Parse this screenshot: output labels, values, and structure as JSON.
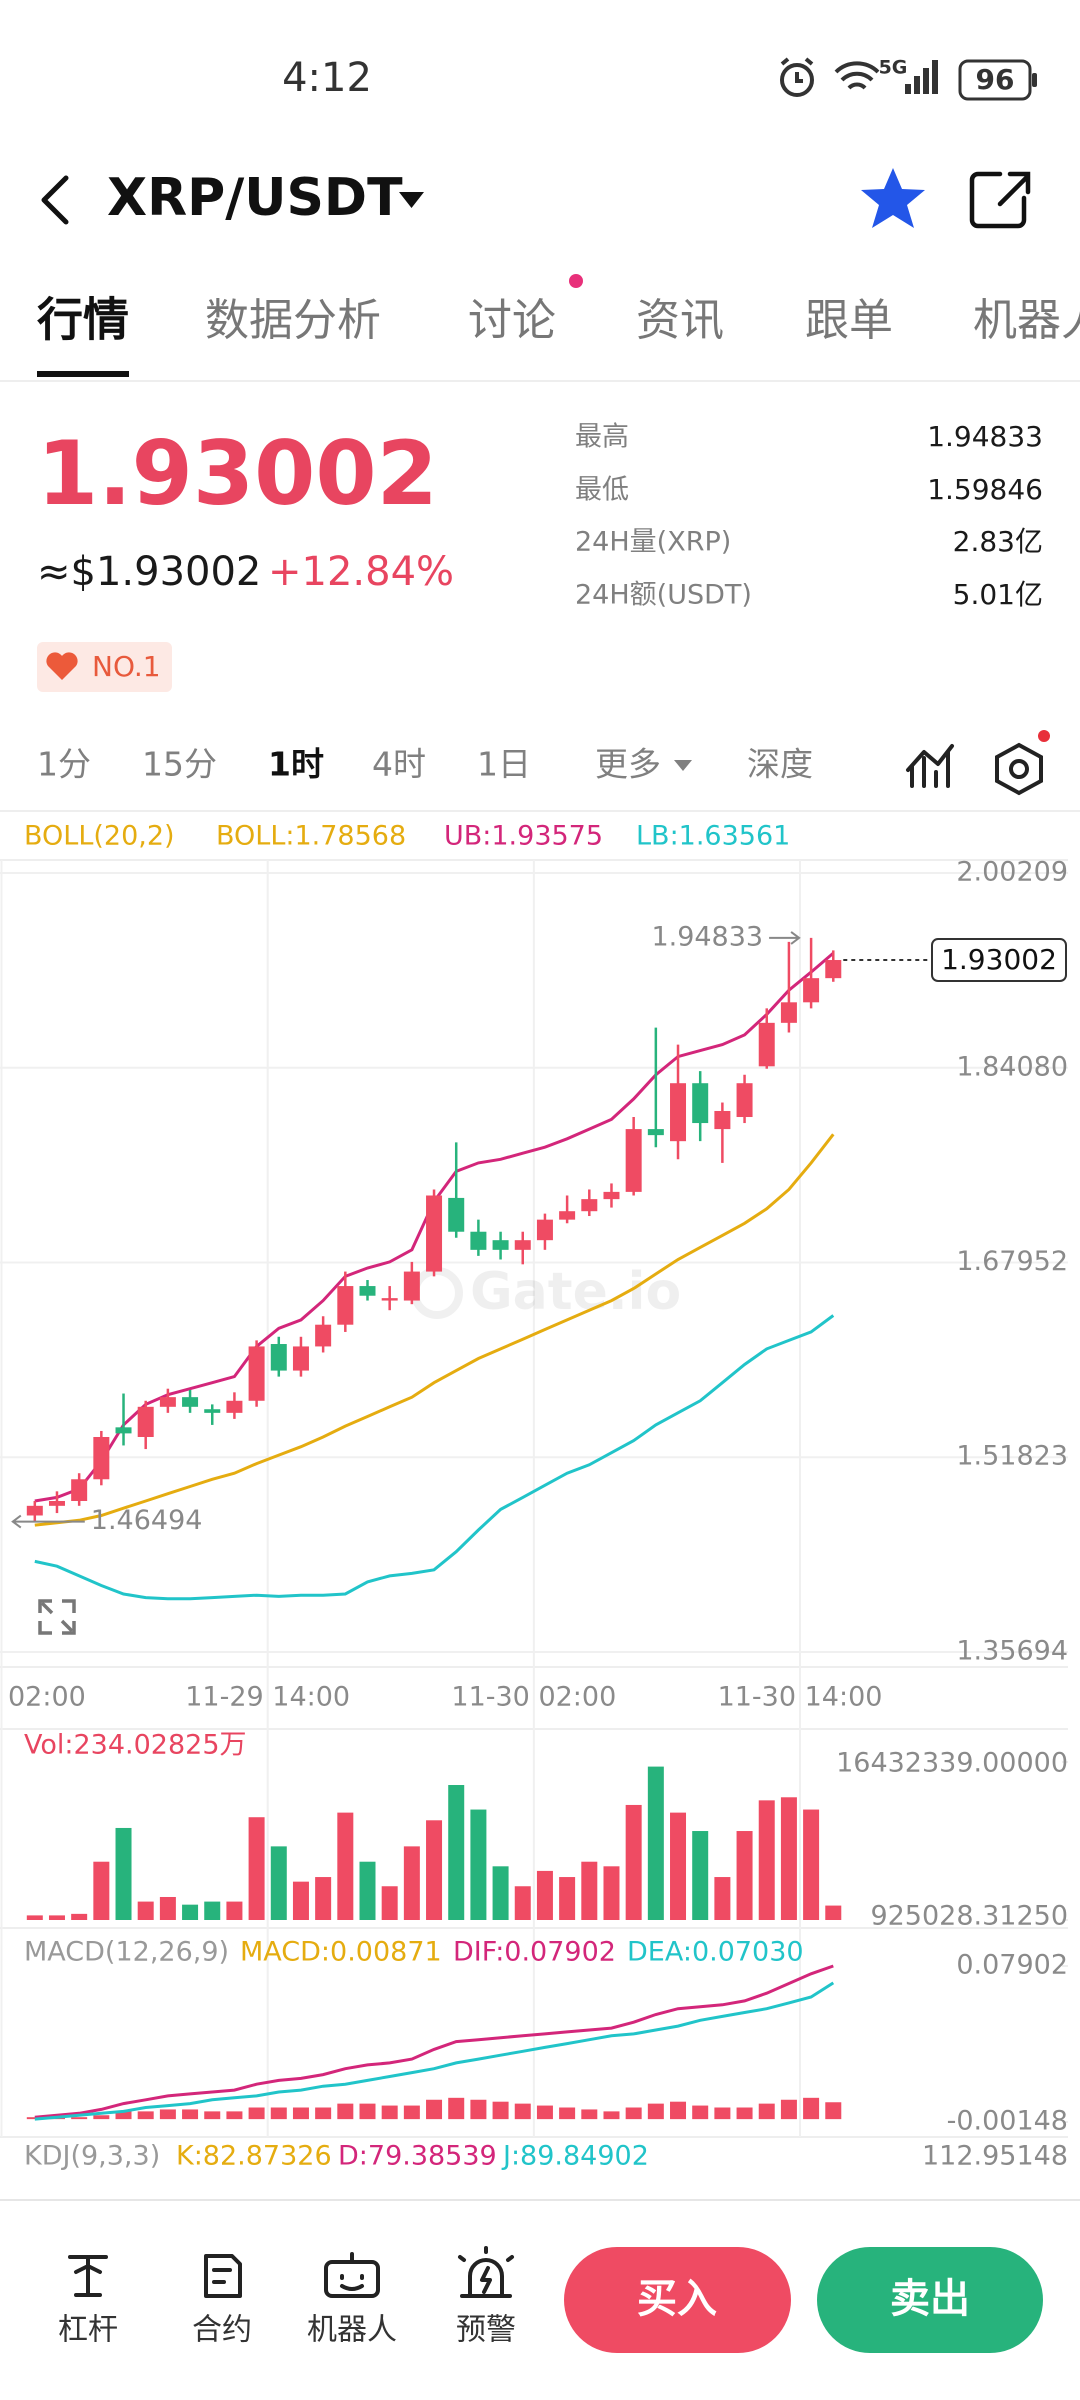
{
  "status_bar": {
    "time": "4:12",
    "network": "5G",
    "battery": "96"
  },
  "header": {
    "pair": "XRP/USDT"
  },
  "tabs": [
    "行情",
    "数据分析",
    "讨论",
    "资讯",
    "跟单",
    "机器人"
  ],
  "price": {
    "last": "1.93002",
    "usd": "≈$1.93002",
    "change": "+12.84%",
    "rank": "NO.1"
  },
  "stats": [
    {
      "label": "最高",
      "value": "1.94833"
    },
    {
      "label": "最低",
      "value": "1.59846"
    },
    {
      "label": "24H量(XRP)",
      "value": "2.83亿"
    },
    {
      "label": "24H额(USDT)",
      "value": "5.01亿"
    }
  ],
  "intervals": [
    "1分",
    "15分",
    "1时",
    "4时",
    "1日",
    "更多",
    "深度"
  ],
  "nav": [
    "杠杆",
    "合约",
    "机器人",
    "预警"
  ],
  "actions": {
    "buy": "买入",
    "sell": "卖出"
  },
  "chart_data": [
    {
      "type": "candlestick",
      "indicator": "BOLL(20,2)",
      "indicator_color": "#e5ac10",
      "watermark": "Gate.io",
      "up_color": "#ef4b63",
      "down_color": "#27b37c",
      "open": [
        1.47,
        1.478,
        1.482,
        1.5,
        1.543,
        1.535,
        1.56,
        1.568,
        1.558,
        1.555,
        1.565,
        1.612,
        1.59,
        1.61,
        1.628,
        1.66,
        1.648,
        1.648,
        1.672,
        1.733,
        1.705,
        1.698,
        1.69,
        1.698,
        1.715,
        1.722,
        1.732,
        1.738,
        1.79,
        1.78,
        1.828,
        1.79,
        1.8,
        1.842,
        1.878,
        1.895,
        1.915
      ],
      "close": [
        1.478,
        1.482,
        1.5,
        1.535,
        1.538,
        1.56,
        1.568,
        1.56,
        1.555,
        1.565,
        1.61,
        1.59,
        1.61,
        1.628,
        1.66,
        1.652,
        1.65,
        1.672,
        1.735,
        1.705,
        1.69,
        1.69,
        1.698,
        1.715,
        1.722,
        1.732,
        1.738,
        1.79,
        1.785,
        1.828,
        1.795,
        1.805,
        1.828,
        1.878,
        1.895,
        1.915,
        1.93002
      ],
      "high": [
        1.482,
        1.49,
        1.505,
        1.54,
        1.571,
        1.565,
        1.575,
        1.574,
        1.562,
        1.572,
        1.615,
        1.618,
        1.618,
        1.635,
        1.672,
        1.665,
        1.66,
        1.68,
        1.74,
        1.779,
        1.715,
        1.705,
        1.705,
        1.72,
        1.735,
        1.74,
        1.745,
        1.8,
        1.874,
        1.86,
        1.838,
        1.812,
        1.835,
        1.89,
        1.945,
        1.94833,
        1.938
      ],
      "low": [
        1.46494,
        1.472,
        1.478,
        1.495,
        1.528,
        1.525,
        1.555,
        1.555,
        1.545,
        1.55,
        1.56,
        1.585,
        1.585,
        1.605,
        1.622,
        1.648,
        1.64,
        1.645,
        1.668,
        1.7,
        1.685,
        1.682,
        1.678,
        1.69,
        1.712,
        1.718,
        1.725,
        1.735,
        1.775,
        1.765,
        1.78,
        1.762,
        1.795,
        1.84,
        1.87,
        1.89,
        1.912
      ],
      "series": [
        {
          "name": "BOLL:1.78568",
          "color": "#e5ac10",
          "values": [
            1.462,
            1.464,
            1.466,
            1.47,
            1.476,
            1.482,
            1.488,
            1.494,
            1.5,
            1.505,
            1.513,
            1.52,
            1.527,
            1.535,
            1.544,
            1.552,
            1.56,
            1.568,
            1.58,
            1.59,
            1.6,
            1.608,
            1.616,
            1.624,
            1.632,
            1.64,
            1.648,
            1.658,
            1.67,
            1.682,
            1.692,
            1.702,
            1.712,
            1.724,
            1.74,
            1.762,
            1.78568
          ]
        },
        {
          "name": "UB:1.93575",
          "color": "#d3267a",
          "values": [
            1.482,
            1.485,
            1.492,
            1.515,
            1.545,
            1.562,
            1.57,
            1.575,
            1.58,
            1.585,
            1.61,
            1.625,
            1.632,
            1.648,
            1.668,
            1.675,
            1.68,
            1.69,
            1.73,
            1.755,
            1.762,
            1.765,
            1.77,
            1.775,
            1.782,
            1.79,
            1.798,
            1.815,
            1.835,
            1.85,
            1.855,
            1.86,
            1.868,
            1.885,
            1.905,
            1.92,
            1.93575
          ]
        },
        {
          "name": "LB:1.63561",
          "color": "#21c4c9",
          "values": [
            1.432,
            1.428,
            1.42,
            1.412,
            1.405,
            1.402,
            1.401,
            1.401,
            1.402,
            1.403,
            1.404,
            1.403,
            1.404,
            1.404,
            1.405,
            1.415,
            1.42,
            1.422,
            1.425,
            1.44,
            1.458,
            1.475,
            1.485,
            1.495,
            1.505,
            1.512,
            1.522,
            1.532,
            1.545,
            1.555,
            1.565,
            1.58,
            1.595,
            1.608,
            1.615,
            1.622,
            1.63561
          ]
        }
      ],
      "ylim": [
        1.35694,
        2.00209
      ],
      "yticks": [
        2.00209,
        {
          "value": 1.8408,
          "label": "1.84080"
        },
        1.67952,
        1.51823,
        1.35694
      ],
      "xticks": [
        {
          "value": -1.5,
          "label": "02:00"
        },
        {
          "value": 10.5,
          "label": "11-29 14:00"
        },
        {
          "value": 22.5,
          "label": "11-30 02:00"
        },
        {
          "value": 34.5,
          "label": "11-30 14:00"
        }
      ],
      "grid": true
    },
    {
      "type": "bar",
      "title": "Vol:234.02825万",
      "values": [
        1376696,
        1376696,
        1527252,
        6646156,
        9958388,
        2731700,
        3183368,
        2430588,
        2731700,
        2731700,
        11012280,
        8151716,
        4688928,
        5140596,
        11463948,
        6646156,
        4237260,
        8151716,
        10711168,
        14173956,
        11765060,
        6194488,
        4237260,
        5742820,
        5140596,
        6646156,
        6194488,
        12216728,
        15980628,
        11463948,
        9657276,
        5140596,
        9657276,
        12668396,
        12969508,
        11765060,
        2340282.5
      ],
      "ylim": [
        925028.3125,
        16432339
      ],
      "yticks": [
        {
          "value": 16432339,
          "label": "16432339.00000"
        },
        {
          "value": 925028.3125,
          "label": "925028.31250"
        }
      ]
    },
    {
      "type": "macd",
      "title": "MACD(12,26,9)",
      "bar_color": "#ef4b63",
      "series": [
        {
          "name": "MACD:0.00871",
          "color": "#e5ac10",
          "values": [
            0.001,
            0.001,
            0.001,
            0.002,
            0.004,
            0.004,
            0.005,
            0.005,
            0.004,
            0.004,
            0.006,
            0.006,
            0.006,
            0.006,
            0.008,
            0.008,
            0.007,
            0.007,
            0.01,
            0.011,
            0.01,
            0.009,
            0.008,
            0.007,
            0.006,
            0.005,
            0.004,
            0.006,
            0.008,
            0.009,
            0.007,
            0.006,
            0.006,
            0.008,
            0.01,
            0.011,
            0.00871
          ]
        },
        {
          "name": "DIF:0.07902",
          "color": "#d3267a",
          "values": [
            0.001,
            0.002,
            0.003,
            0.005,
            0.008,
            0.01,
            0.012,
            0.013,
            0.014,
            0.015,
            0.018,
            0.02,
            0.021,
            0.023,
            0.026,
            0.028,
            0.029,
            0.031,
            0.036,
            0.04,
            0.041,
            0.042,
            0.043,
            0.044,
            0.045,
            0.046,
            0.047,
            0.05,
            0.054,
            0.057,
            0.058,
            0.059,
            0.061,
            0.065,
            0.07,
            0.075,
            0.07902
          ]
        },
        {
          "name": "DEA:0.07030",
          "color": "#21c4c9",
          "values": [
            0.0,
            0.001,
            0.002,
            0.003,
            0.004,
            0.006,
            0.007,
            0.008,
            0.01,
            0.011,
            0.012,
            0.014,
            0.015,
            0.017,
            0.018,
            0.02,
            0.022,
            0.024,
            0.026,
            0.029,
            0.031,
            0.033,
            0.035,
            0.037,
            0.039,
            0.041,
            0.043,
            0.044,
            0.046,
            0.048,
            0.051,
            0.053,
            0.055,
            0.057,
            0.06,
            0.063,
            0.0703
          ]
        }
      ],
      "ylim": [
        -0.00148,
        0.07902
      ],
      "yticks": [
        0.07902,
        -0.00148
      ]
    },
    {
      "type": "kdj",
      "title": "KDJ(9,3,3)",
      "legend": [
        {
          "name": "K:82.87326",
          "color": "#e5ac10"
        },
        {
          "name": "D:79.38539",
          "color": "#d3267a"
        },
        {
          "name": "J:89.84902",
          "color": "#21c4c9"
        }
      ],
      "yticks": [
        112.95148
      ]
    }
  ]
}
